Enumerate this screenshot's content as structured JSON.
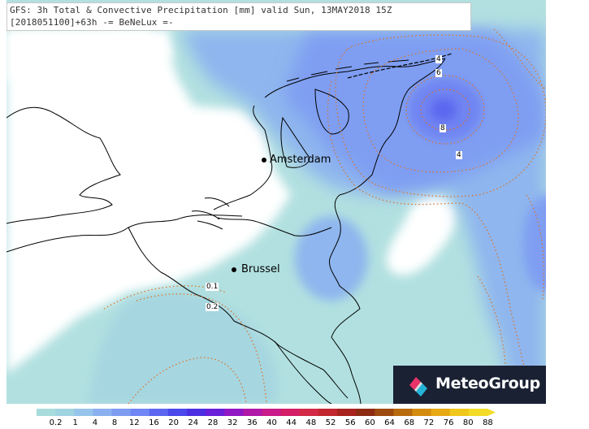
{
  "header": {
    "line1": "GFS: 3h Total & Convective Precipitation [mm] valid Sun, 13MAY2018 15Z",
    "line2": "[2018051100]+63h -= BeNeLux =-"
  },
  "cities": {
    "amsterdam": "Amsterdam",
    "brussel": "Brussel"
  },
  "contour_labels": {
    "c4_top": "4",
    "c6": "6",
    "c8": "8",
    "c4_right": "4",
    "c01": "0.1",
    "c02": "0.2"
  },
  "logo": {
    "name": "MeteoGroup"
  },
  "legend": {
    "ticks": [
      "0.2",
      "1",
      "4",
      "8",
      "12",
      "16",
      "20",
      "24",
      "28",
      "32",
      "36",
      "40",
      "44",
      "48",
      "52",
      "56",
      "60",
      "64",
      "68",
      "72",
      "76",
      "80",
      "88"
    ],
    "colors": [
      "#a8dcdc",
      "#9fd4e0",
      "#96c4ea",
      "#8ab0f0",
      "#7d9cf2",
      "#6f86f4",
      "#5c66f0",
      "#4a48ea",
      "#4b2fe0",
      "#6a1fd8",
      "#8f18c4",
      "#b018a8",
      "#c81a88",
      "#d41e66",
      "#d22a46",
      "#c2262e",
      "#a8221e",
      "#8c2a12",
      "#9c4a10",
      "#b86a0e",
      "#d48c10",
      "#e8aa14",
      "#f0c81c",
      "#f2dc28"
    ],
    "accent_contour": "#e07020"
  }
}
